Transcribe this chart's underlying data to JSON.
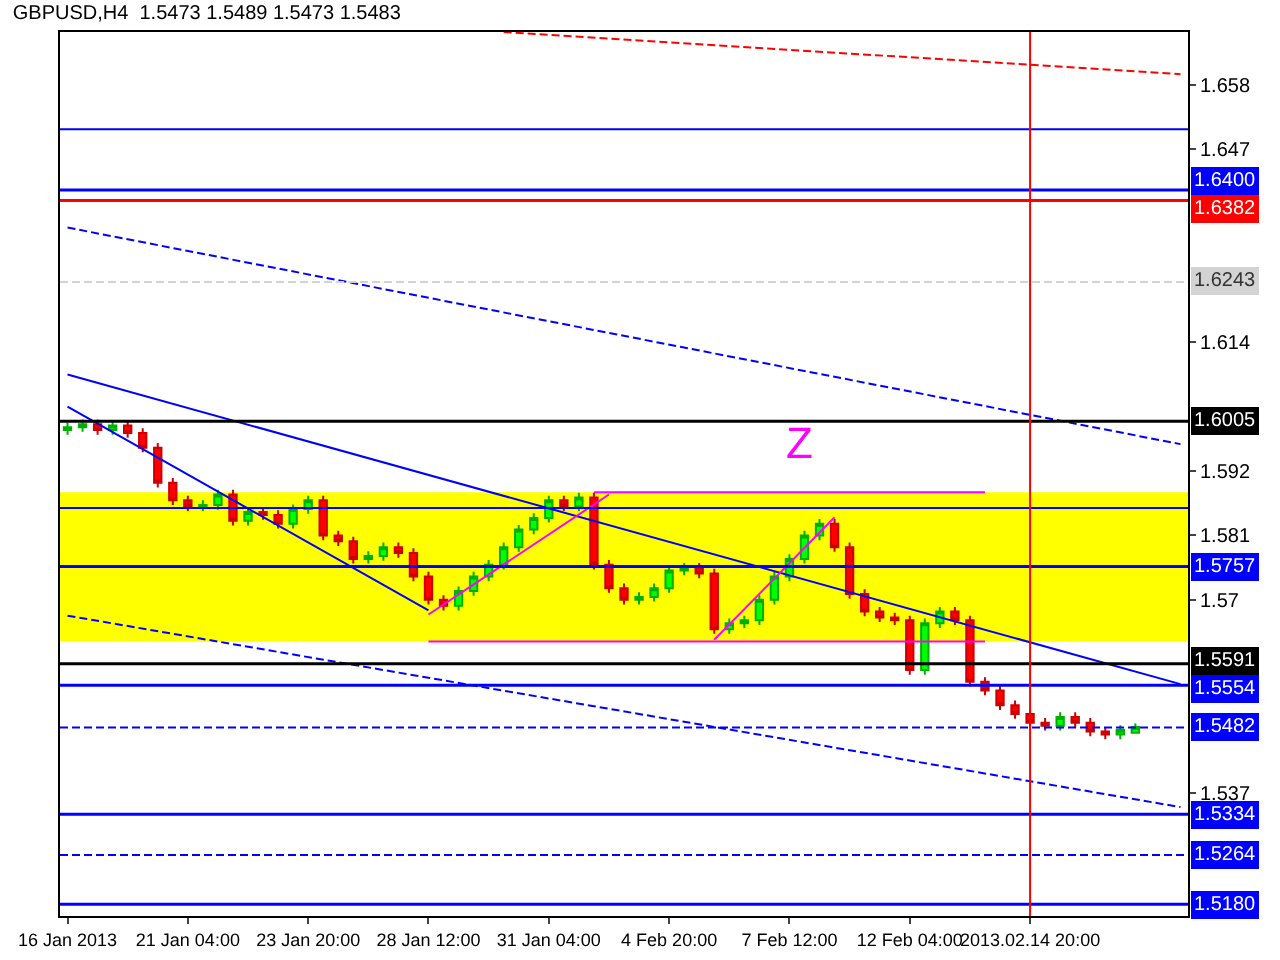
{
  "chart_data": {
    "type": "candlestick",
    "title": "GBPUSD,H4  1.5473 1.5489 1.5473 1.5483",
    "categories": [
      "16 Jan 2013",
      null,
      null,
      null,
      null,
      null,
      null,
      null,
      "21 Jan 04:00",
      null,
      null,
      null,
      null,
      null,
      null,
      null,
      "23 Jan 20:00",
      null,
      null,
      null,
      null,
      null,
      null,
      null,
      "28 Jan 12:00",
      null,
      null,
      null,
      null,
      null,
      null,
      null,
      "31 Jan 04:00",
      null,
      null,
      null,
      null,
      null,
      null,
      null,
      "4 Feb 20:00",
      null,
      null,
      null,
      null,
      null,
      null,
      null,
      "7 Feb 12:00",
      null,
      null,
      null,
      null,
      null,
      null,
      null,
      "12 Feb 04:00",
      null,
      null,
      null,
      null,
      null,
      null,
      null,
      "2013.02.14 20:00",
      null,
      null,
      null,
      null,
      null,
      null,
      null,
      null,
      null,
      null
    ],
    "ohlc": [
      [
        1.599,
        1.6003,
        1.5982,
        1.5995
      ],
      [
        1.5995,
        1.6008,
        1.5987,
        1.6
      ],
      [
        1.6,
        1.6008,
        1.5982,
        1.599
      ],
      [
        1.599,
        1.6006,
        1.5982,
        1.5998
      ],
      [
        1.5998,
        1.6006,
        1.5977,
        1.5985
      ],
      [
        1.5985,
        1.5993,
        1.5952,
        1.596
      ],
      [
        1.596,
        1.5968,
        1.5892,
        1.59
      ],
      [
        1.59,
        1.5908,
        1.5862,
        1.587
      ],
      [
        1.587,
        1.5878,
        1.5852,
        1.586
      ],
      [
        1.586,
        1.587,
        1.5852,
        1.5862
      ],
      [
        1.5862,
        1.5888,
        1.5854,
        1.588
      ],
      [
        1.588,
        1.5888,
        1.5827,
        1.5835
      ],
      [
        1.5835,
        1.5858,
        1.5827,
        1.585
      ],
      [
        1.585,
        1.5858,
        1.5837,
        1.5845
      ],
      [
        1.5845,
        1.5853,
        1.5822,
        1.583
      ],
      [
        1.583,
        1.5863,
        1.5822,
        1.5855
      ],
      [
        1.5855,
        1.5878,
        1.5847,
        1.587
      ],
      [
        1.587,
        1.5878,
        1.5802,
        1.581
      ],
      [
        1.581,
        1.5818,
        1.5792,
        1.58
      ],
      [
        1.58,
        1.5808,
        1.5762,
        1.577
      ],
      [
        1.577,
        1.5783,
        1.5762,
        1.5775
      ],
      [
        1.5775,
        1.5798,
        1.5767,
        1.579
      ],
      [
        1.579,
        1.5798,
        1.5772,
        1.578
      ],
      [
        1.578,
        1.5788,
        1.5732,
        1.574
      ],
      [
        1.574,
        1.5748,
        1.5692,
        1.57
      ],
      [
        1.57,
        1.5708,
        1.5682,
        1.569
      ],
      [
        1.569,
        1.5723,
        1.5682,
        1.5715
      ],
      [
        1.5715,
        1.5748,
        1.5707,
        1.574
      ],
      [
        1.574,
        1.5768,
        1.5732,
        1.576
      ],
      [
        1.576,
        1.5798,
        1.5752,
        1.579
      ],
      [
        1.579,
        1.5828,
        1.5782,
        1.582
      ],
      [
        1.582,
        1.5848,
        1.5812,
        1.584
      ],
      [
        1.584,
        1.5878,
        1.5832,
        1.587
      ],
      [
        1.587,
        1.5878,
        1.5852,
        1.586
      ],
      [
        1.586,
        1.5883,
        1.5852,
        1.5875
      ],
      [
        1.5875,
        1.5883,
        1.5752,
        1.576
      ],
      [
        1.576,
        1.5768,
        1.5712,
        1.572
      ],
      [
        1.572,
        1.5728,
        1.5692,
        1.57
      ],
      [
        1.57,
        1.5713,
        1.5692,
        1.5705
      ],
      [
        1.5705,
        1.5728,
        1.5697,
        1.572
      ],
      [
        1.572,
        1.5758,
        1.5712,
        1.575
      ],
      [
        1.575,
        1.5763,
        1.5742,
        1.5755
      ],
      [
        1.5755,
        1.5763,
        1.5737,
        1.5745
      ],
      [
        1.5745,
        1.5753,
        1.5642,
        1.565
      ],
      [
        1.565,
        1.5668,
        1.5642,
        1.566
      ],
      [
        1.566,
        1.5673,
        1.5652,
        1.5665
      ],
      [
        1.5665,
        1.5708,
        1.5657,
        1.57
      ],
      [
        1.57,
        1.5748,
        1.5692,
        1.574
      ],
      [
        1.574,
        1.5778,
        1.5732,
        1.577
      ],
      [
        1.577,
        1.5818,
        1.5762,
        1.581
      ],
      [
        1.581,
        1.5838,
        1.5802,
        1.583
      ],
      [
        1.583,
        1.5838,
        1.5782,
        1.579
      ],
      [
        1.579,
        1.5798,
        1.5702,
        1.571
      ],
      [
        1.571,
        1.5718,
        1.5672,
        1.568
      ],
      [
        1.568,
        1.5688,
        1.5662,
        1.567
      ],
      [
        1.567,
        1.5678,
        1.5657,
        1.5665
      ],
      [
        1.5665,
        1.5673,
        1.5572,
        1.558
      ],
      [
        1.558,
        1.5668,
        1.5572,
        1.566
      ],
      [
        1.566,
        1.5688,
        1.5652,
        1.568
      ],
      [
        1.568,
        1.5688,
        1.5657,
        1.5665
      ],
      [
        1.5665,
        1.5673,
        1.5552,
        1.556
      ],
      [
        1.556,
        1.5568,
        1.5537,
        1.5545
      ],
      [
        1.5545,
        1.5553,
        1.5512,
        1.552
      ],
      [
        1.552,
        1.5528,
        1.5497,
        1.5505
      ],
      [
        1.5505,
        1.5513,
        1.5482,
        1.549
      ],
      [
        1.549,
        1.5498,
        1.5477,
        1.5485
      ],
      [
        1.5485,
        1.5508,
        1.5477,
        1.55
      ],
      [
        1.55,
        1.5508,
        1.5482,
        1.549
      ],
      [
        1.549,
        1.5498,
        1.5467,
        1.5475
      ],
      [
        1.5475,
        1.5483,
        1.5462,
        1.547
      ],
      [
        1.547,
        1.5486,
        1.5462,
        1.5478
      ],
      [
        1.5473,
        1.5489,
        1.5473,
        1.5483
      ],
      null,
      null,
      null
    ],
    "series": [
      {
        "type": "line",
        "color": "#0000ff",
        "line_style": "solid",
        "values": [
          1.6085,
          null,
          null,
          null,
          null,
          null,
          null,
          null,
          null,
          null,
          null,
          null,
          null,
          null,
          null,
          null,
          null,
          null,
          null,
          null,
          null,
          null,
          null,
          null,
          null,
          null,
          null,
          null,
          null,
          null,
          null,
          null,
          null,
          null,
          null,
          null,
          null,
          null,
          null,
          null,
          null,
          null,
          null,
          null,
          null,
          null,
          null,
          null,
          null,
          null,
          null,
          null,
          null,
          null,
          null,
          null,
          null,
          null,
          null,
          null,
          null,
          null,
          null,
          null,
          null,
          null,
          null,
          null,
          null,
          null,
          null,
          null,
          null,
          null,
          1.5556
        ]
      },
      {
        "type": "line",
        "color": "#0000ff",
        "line_style": "solid",
        "values": [
          1.603,
          null,
          null,
          null,
          null,
          null,
          null,
          null,
          null,
          null,
          null,
          null,
          null,
          null,
          null,
          null,
          null,
          null,
          null,
          null,
          null,
          null,
          null,
          null,
          1.5682,
          null,
          null,
          null,
          null,
          null,
          null,
          null,
          null,
          null,
          null,
          null,
          null,
          null,
          null,
          null,
          null,
          null,
          null,
          null,
          null,
          null,
          null,
          null,
          null,
          null,
          null,
          null,
          null,
          null,
          null,
          null,
          null,
          null,
          null,
          null,
          null,
          null,
          null,
          null,
          null,
          null,
          null,
          null,
          null,
          null,
          null,
          null,
          null,
          null,
          null
        ]
      },
      {
        "type": "line",
        "color": "#0000ff",
        "line_style": "dashed",
        "values": [
          1.6336,
          null,
          null,
          null,
          null,
          null,
          null,
          null,
          null,
          null,
          null,
          null,
          null,
          null,
          null,
          null,
          null,
          null,
          null,
          null,
          null,
          null,
          null,
          null,
          null,
          null,
          null,
          null,
          null,
          null,
          null,
          null,
          null,
          null,
          null,
          null,
          null,
          null,
          null,
          null,
          null,
          null,
          null,
          null,
          null,
          null,
          null,
          null,
          null,
          null,
          null,
          null,
          null,
          null,
          null,
          null,
          null,
          null,
          null,
          null,
          null,
          null,
          null,
          null,
          null,
          null,
          null,
          null,
          null,
          null,
          null,
          null,
          null,
          null,
          1.5966
        ]
      },
      {
        "type": "line",
        "color": "#0000ff",
        "line_style": "dashed",
        "values": [
          1.5673,
          null,
          null,
          null,
          null,
          null,
          null,
          null,
          null,
          null,
          null,
          null,
          null,
          null,
          null,
          null,
          null,
          null,
          null,
          null,
          null,
          null,
          null,
          null,
          null,
          null,
          null,
          null,
          null,
          null,
          null,
          null,
          null,
          null,
          null,
          null,
          null,
          null,
          null,
          null,
          null,
          null,
          null,
          null,
          null,
          null,
          null,
          null,
          null,
          null,
          null,
          null,
          null,
          null,
          null,
          null,
          null,
          null,
          null,
          null,
          null,
          null,
          null,
          null,
          null,
          null,
          null,
          null,
          null,
          null,
          null,
          null,
          null,
          null,
          1.5346
        ]
      },
      {
        "type": "line",
        "color": "#ff0000",
        "line_style": "dashed",
        "values": [
          null,
          null,
          null,
          null,
          null,
          null,
          null,
          null,
          null,
          null,
          null,
          null,
          null,
          null,
          null,
          null,
          null,
          null,
          null,
          null,
          null,
          null,
          null,
          null,
          null,
          null,
          null,
          null,
          null,
          1.667,
          null,
          null,
          null,
          null,
          null,
          null,
          null,
          null,
          null,
          null,
          null,
          null,
          null,
          null,
          null,
          null,
          null,
          null,
          null,
          null,
          null,
          null,
          null,
          null,
          null,
          null,
          null,
          null,
          null,
          null,
          null,
          null,
          null,
          null,
          null,
          null,
          null,
          null,
          null,
          null,
          null,
          null,
          null,
          null,
          1.6598
        ]
      },
      {
        "type": "line",
        "color": "#ff00ff",
        "line_style": "solid",
        "values": [
          null,
          null,
          null,
          null,
          null,
          null,
          null,
          null,
          null,
          null,
          null,
          null,
          null,
          null,
          null,
          null,
          null,
          null,
          null,
          null,
          null,
          null,
          null,
          null,
          null,
          null,
          null,
          null,
          null,
          null,
          null,
          null,
          null,
          null,
          null,
          1.5884,
          null,
          null,
          null,
          null,
          null,
          null,
          null,
          null,
          null,
          null,
          null,
          null,
          null,
          null,
          null,
          null,
          null,
          null,
          null,
          null,
          null,
          null,
          null,
          null,
          null,
          1.5884,
          null,
          null,
          null,
          null,
          null,
          null,
          null,
          null,
          null,
          null,
          null,
          null,
          null
        ]
      },
      {
        "type": "line",
        "color": "#ff00ff",
        "line_style": "solid",
        "values": [
          null,
          null,
          null,
          null,
          null,
          null,
          null,
          null,
          null,
          null,
          null,
          null,
          null,
          null,
          null,
          null,
          null,
          null,
          null,
          null,
          null,
          null,
          null,
          null,
          1.5629,
          null,
          null,
          null,
          null,
          null,
          null,
          null,
          null,
          null,
          null,
          null,
          null,
          null,
          null,
          null,
          null,
          null,
          null,
          null,
          null,
          null,
          null,
          null,
          null,
          null,
          null,
          null,
          null,
          null,
          null,
          null,
          null,
          null,
          null,
          null,
          null,
          1.5629,
          null,
          null,
          null,
          null,
          null,
          null,
          null,
          null,
          null,
          null,
          null,
          null,
          null
        ]
      },
      {
        "type": "line",
        "color": "#ff00ff",
        "line_style": "solid",
        "values": [
          null,
          null,
          null,
          null,
          null,
          null,
          null,
          null,
          null,
          null,
          null,
          null,
          null,
          null,
          null,
          null,
          null,
          null,
          null,
          null,
          null,
          null,
          null,
          null,
          1.5675,
          null,
          null,
          null,
          null,
          null,
          null,
          null,
          null,
          null,
          null,
          null,
          1.588,
          null,
          null,
          null,
          null,
          null,
          null,
          null,
          null,
          null,
          null,
          null,
          null,
          null,
          null,
          null,
          null,
          null,
          null,
          null,
          null,
          null,
          null,
          null,
          null,
          null,
          null,
          null,
          null,
          null,
          null,
          null,
          null,
          null,
          null,
          null,
          null,
          null,
          null
        ]
      },
      {
        "type": "line",
        "color": "#ff00ff",
        "line_style": "solid",
        "values": [
          null,
          null,
          null,
          null,
          null,
          null,
          null,
          null,
          null,
          null,
          null,
          null,
          null,
          null,
          null,
          null,
          null,
          null,
          null,
          null,
          null,
          null,
          null,
          null,
          null,
          null,
          null,
          null,
          null,
          null,
          null,
          null,
          null,
          null,
          null,
          null,
          null,
          null,
          null,
          null,
          null,
          null,
          null,
          1.5632,
          null,
          null,
          null,
          null,
          null,
          null,
          null,
          1.5841,
          null,
          null,
          null,
          null,
          null,
          null,
          null,
          null,
          null,
          null,
          null,
          null,
          null,
          null,
          null,
          null,
          null,
          null,
          null,
          null,
          null,
          null,
          null
        ]
      }
    ],
    "ylim": [
      1.516,
      1.667
    ],
    "yticks": [
      1.658,
      1.647,
      1.614,
      1.592,
      1.581,
      1.57,
      1.537
    ],
    "bands": [
      {
        "axis": "y",
        "from": 1.5629,
        "to": 1.5884,
        "color": "#ffff00"
      }
    ],
    "ref_lines": [
      {
        "axis": "y",
        "value": 1.6504,
        "color": "#0000ff",
        "line_style": "solid"
      },
      {
        "axis": "y",
        "value": 1.64,
        "label": "1.6400",
        "color": "#0000ff",
        "line_style": "solid"
      },
      {
        "axis": "y",
        "value": 1.6382,
        "label": "1.6382",
        "color": "#ff0000",
        "line_style": "solid"
      },
      {
        "axis": "y",
        "value": 1.6243,
        "label": "1.6243",
        "color": "#d3d3d3",
        "line_style": "dashed"
      },
      {
        "axis": "y",
        "value": 1.6005,
        "label": "1.6005",
        "color": "#000000",
        "line_style": "solid"
      },
      {
        "axis": "y",
        "value": 1.5857,
        "color": "#0000ff",
        "line_style": "solid"
      },
      {
        "axis": "y",
        "value": 1.5757,
        "label": "1.5757",
        "color": "#0000ff",
        "line_style": "solid"
      },
      {
        "axis": "y",
        "value": 1.5591,
        "label": "1.5591",
        "color": "#000000",
        "line_style": "solid"
      },
      {
        "axis": "y",
        "value": 1.5554,
        "label": "1.5554",
        "color": "#0000ff",
        "line_style": "solid"
      },
      {
        "axis": "y",
        "value": 1.5482,
        "label": "1.5482",
        "color": "#0000ff",
        "line_style": "dashed"
      },
      {
        "axis": "y",
        "value": 1.5334,
        "label": "1.5334",
        "color": "#0000ff",
        "line_style": "solid"
      },
      {
        "axis": "y",
        "value": 1.5264,
        "label": "1.5264",
        "color": "#0000ff",
        "line_style": "dashed"
      },
      {
        "axis": "y",
        "value": 1.518,
        "label": "1.5180",
        "color": "#0000ff",
        "line_style": "solid"
      },
      {
        "axis": "x",
        "value": "2013.02.14 20:00",
        "color": "#ff0000",
        "line_style": "solid"
      }
    ],
    "annotations": [
      "Z"
    ]
  }
}
